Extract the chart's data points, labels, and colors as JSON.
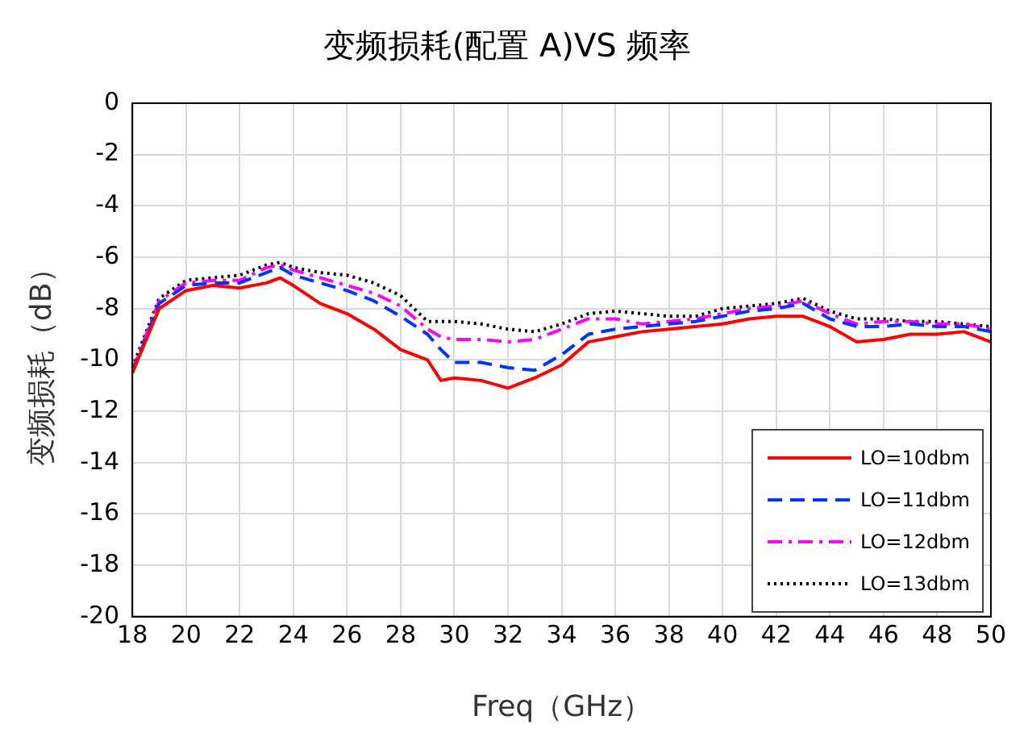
{
  "chart_data": {
    "type": "line",
    "title": "变频损耗(配置 A)VS 频率",
    "xlabel": "Freq（GHz）",
    "ylabel": "变频损耗（dB）",
    "x": [
      18,
      19,
      20,
      21,
      22,
      23,
      23.5,
      24,
      25,
      26,
      27,
      28,
      29,
      29.5,
      30,
      31,
      32,
      33,
      34,
      35,
      36,
      37,
      38,
      39,
      40,
      41,
      42,
      43,
      44,
      45,
      46,
      47,
      48,
      49,
      50
    ],
    "series": [
      {
        "name": "LO=10dbm",
        "color": "#ff0000",
        "line_style": "solid",
        "values": [
          -10.5,
          -8,
          -7.3,
          -7.1,
          -7.2,
          -7.0,
          -6.8,
          -7.1,
          -7.8,
          -8.2,
          -8.8,
          -9.6,
          -10.0,
          -10.8,
          -10.7,
          -10.8,
          -11.1,
          -10.7,
          -10.2,
          -9.3,
          -9.1,
          -8.9,
          -8.8,
          -8.7,
          -8.6,
          -8.4,
          -8.3,
          -8.3,
          -8.7,
          -9.3,
          -9.2,
          -9.0,
          -9.0,
          -8.9,
          -9.3
        ]
      },
      {
        "name": "LO=11dbm",
        "color": "#0033ff",
        "line_style": "dashed",
        "values": [
          -10.5,
          -7.8,
          -7.1,
          -7.0,
          -7.0,
          -6.6,
          -6.4,
          -6.7,
          -7.0,
          -7.3,
          -7.7,
          -8.3,
          -9.0,
          -9.6,
          -10.1,
          -10.1,
          -10.3,
          -10.4,
          -9.8,
          -9.0,
          -8.8,
          -8.7,
          -8.6,
          -8.5,
          -8.3,
          -8.1,
          -8.0,
          -7.8,
          -8.4,
          -8.7,
          -8.7,
          -8.6,
          -8.7,
          -8.7,
          -8.9
        ]
      },
      {
        "name": "LO=12dbm",
        "color": "#ff00ff",
        "line_style": "dashdot",
        "values": [
          -10.4,
          -7.7,
          -7.0,
          -6.9,
          -6.9,
          -6.4,
          -6.3,
          -6.5,
          -6.8,
          -7.1,
          -7.4,
          -7.9,
          -8.8,
          -9.1,
          -9.2,
          -9.2,
          -9.3,
          -9.2,
          -8.8,
          -8.4,
          -8.4,
          -8.6,
          -8.5,
          -8.4,
          -8.2,
          -8.0,
          -7.9,
          -7.7,
          -8.2,
          -8.6,
          -8.5,
          -8.5,
          -8.6,
          -8.6,
          -8.8
        ]
      },
      {
        "name": "LO=13dbm",
        "color": "#000000",
        "line_style": "dotted",
        "values": [
          -10.3,
          -7.6,
          -6.9,
          -6.8,
          -6.7,
          -6.3,
          -6.2,
          -6.4,
          -6.6,
          -6.7,
          -7.0,
          -7.5,
          -8.5,
          -8.5,
          -8.5,
          -8.6,
          -8.8,
          -8.9,
          -8.6,
          -8.2,
          -8.1,
          -8.2,
          -8.3,
          -8.3,
          -8.0,
          -7.9,
          -7.8,
          -7.6,
          -8.1,
          -8.4,
          -8.4,
          -8.5,
          -8.5,
          -8.6,
          -8.7
        ]
      }
    ],
    "xlim": [
      18,
      50
    ],
    "xticks": [
      18,
      20,
      22,
      24,
      26,
      28,
      30,
      32,
      34,
      36,
      38,
      40,
      42,
      44,
      46,
      48,
      50
    ],
    "ylim": [
      -20,
      0
    ],
    "yticks": [
      -20,
      -18,
      -16,
      -14,
      -12,
      -10,
      -8,
      -6,
      -4,
      -2,
      0
    ],
    "grid": true,
    "legend": "bottom right",
    "marker": "none"
  }
}
